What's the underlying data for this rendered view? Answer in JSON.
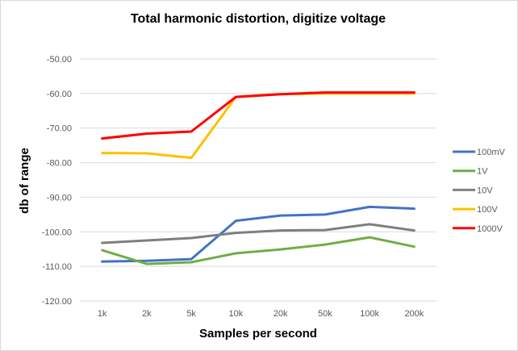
{
  "chart_data": {
    "type": "line",
    "title": "Total harmonic distortion, digitize voltage",
    "xlabel": "Samples per second",
    "ylabel": "db of range",
    "categories": [
      "1k",
      "2k",
      "5k",
      "10k",
      "20k",
      "50k",
      "100k",
      "200k"
    ],
    "ylim": [
      -120,
      -50
    ],
    "yticks": [
      "-50.00",
      "-60.00",
      "-70.00",
      "-80.00",
      "-90.00",
      "-100.00",
      "-110.00",
      "-120.00"
    ],
    "ytick_values": [
      -50,
      -60,
      -70,
      -80,
      -90,
      -100,
      -110,
      -120
    ],
    "grid": true,
    "legend_position": "right",
    "series": [
      {
        "name": "100mV",
        "color": "#4472C4",
        "values": [
          -108.6,
          -108.4,
          -107.9,
          -96.8,
          -95.3,
          -95.0,
          -92.8,
          -93.3
        ]
      },
      {
        "name": "1V",
        "color": "#70AD47",
        "values": [
          -105.3,
          -109.3,
          -108.8,
          -106.2,
          -105.1,
          -103.7,
          -101.6,
          -104.3
        ]
      },
      {
        "name": "10V",
        "color": "#7F7F7F",
        "values": [
          -103.2,
          -102.5,
          -101.8,
          -100.3,
          -99.6,
          -99.5,
          -97.8,
          -99.6
        ]
      },
      {
        "name": "100V",
        "color": "#FFC000",
        "values": [
          -77.2,
          -77.3,
          -78.6,
          -61.0,
          -60.2,
          -60.0,
          -60.0,
          -60.0
        ]
      },
      {
        "name": "1000V",
        "color": "#FF0000",
        "values": [
          -73.0,
          -71.6,
          -71.0,
          -61.0,
          -60.2,
          -59.7,
          -59.7,
          -59.7
        ]
      }
    ]
  }
}
